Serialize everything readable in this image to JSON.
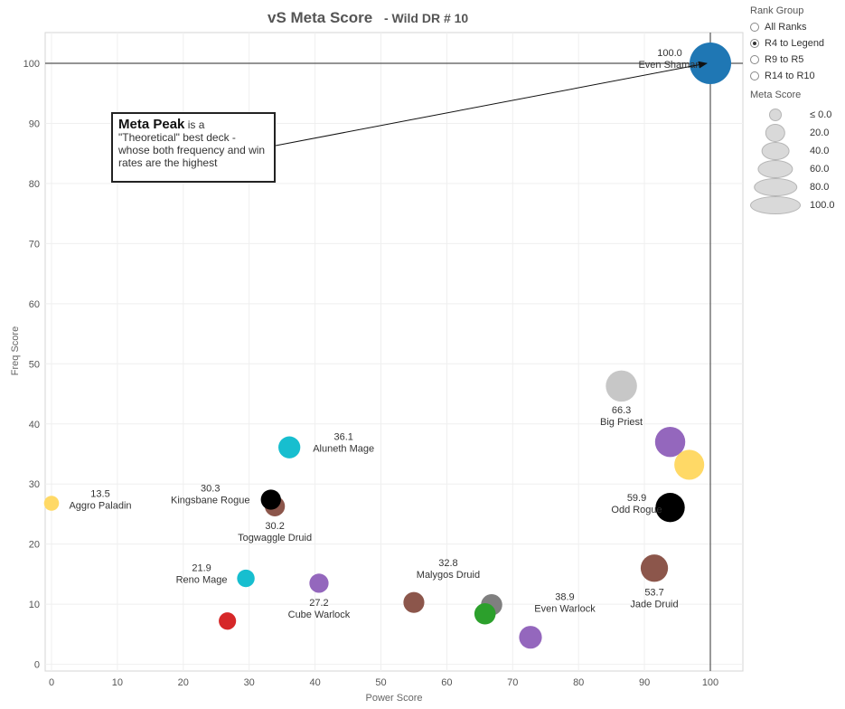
{
  "chart_data": {
    "type": "scatter",
    "title": "vS Meta Score",
    "subtitle": "- Wild DR # 10",
    "xlabel": "Power Score",
    "ylabel": "Freq Score",
    "xlim": [
      0,
      105
    ],
    "ylim": [
      0,
      105
    ],
    "xticks": [
      "0",
      "10",
      "20",
      "30",
      "40",
      "50",
      "60",
      "70",
      "80",
      "90",
      "100"
    ],
    "yticks": [
      "0",
      "10",
      "20",
      "30",
      "40",
      "50",
      "60",
      "70",
      "80",
      "90",
      "100"
    ],
    "grid": true,
    "reference_lines": {
      "x": 100,
      "y": 100
    },
    "points": [
      {
        "x": 100.0,
        "y": 100.0,
        "size": 100,
        "color": "#1f77b4",
        "name": "Even Shaman",
        "value": "100.0"
      },
      {
        "x": 86.5,
        "y": 46.3,
        "size": 66.3,
        "color": "#c7c7c7",
        "name": "Big Priest",
        "value": "66.3"
      },
      {
        "x": 93.9,
        "y": 37.0,
        "size": 63,
        "color": "#9467bd",
        "name": "",
        "value": ""
      },
      {
        "x": 96.8,
        "y": 33.2,
        "size": 62,
        "color": "#ffd966",
        "name": "",
        "value": ""
      },
      {
        "x": 93.9,
        "y": 26.1,
        "size": 59.9,
        "color": "#000000",
        "name": "Odd Rogue",
        "value": "59.9"
      },
      {
        "x": 91.5,
        "y": 16.0,
        "size": 53.7,
        "color": "#8c564b",
        "name": "Jade Druid",
        "value": "53.7"
      },
      {
        "x": 72.7,
        "y": 4.5,
        "size": 38.9,
        "color": "#9467bd",
        "name": "Even Warlock",
        "value": "38.9"
      },
      {
        "x": 66.8,
        "y": 9.9,
        "size": 34,
        "color": "#7f7f7f",
        "name": "",
        "value": ""
      },
      {
        "x": 65.8,
        "y": 8.4,
        "size": 34,
        "color": "#2ca02c",
        "name": "",
        "value": ""
      },
      {
        "x": 55.0,
        "y": 10.3,
        "size": 32.8,
        "color": "#8c564b",
        "name": "Malygos Druid",
        "value": "32.8"
      },
      {
        "x": 40.6,
        "y": 13.5,
        "size": 27.2,
        "color": "#9467bd",
        "name": "Cube Warlock",
        "value": "27.2"
      },
      {
        "x": 36.1,
        "y": 36.1,
        "size": 36.1,
        "color": "#17becf",
        "name": "Aluneth Mage",
        "value": "36.1"
      },
      {
        "x": 33.9,
        "y": 26.3,
        "size": 30.2,
        "color": "#8c564b",
        "name": "Togwaggle Druid",
        "value": "30.2"
      },
      {
        "x": 33.3,
        "y": 27.4,
        "size": 30.3,
        "color": "#000000",
        "name": "Kingsbane Rogue",
        "value": "30.3"
      },
      {
        "x": 29.5,
        "y": 14.3,
        "size": 21.9,
        "color": "#17becf",
        "name": "Reno Mage",
        "value": "21.9"
      },
      {
        "x": 26.7,
        "y": 7.2,
        "size": 21,
        "color": "#d62728",
        "name": "",
        "value": ""
      },
      {
        "x": 0.0,
        "y": 26.8,
        "size": 13.5,
        "color": "#ffd966",
        "name": "Aggro Paladin",
        "value": "13.5"
      }
    ]
  },
  "annotation": {
    "bold": "Meta Peak",
    "text": " is a \"Theoretical\" best deck - whose both frequency and win rates are the highest"
  },
  "legend": {
    "rank_group_title": "Rank Group",
    "rank_options": [
      {
        "label": "All Ranks",
        "checked": false
      },
      {
        "label": "R4 to Legend",
        "checked": true
      },
      {
        "label": "R9 to R5",
        "checked": false
      },
      {
        "label": "R14 to R10",
        "checked": false
      }
    ],
    "meta_score_title": "Meta Score",
    "size_entries": [
      {
        "label": "≤ 0.0",
        "value": 0
      },
      {
        "label": "20.0",
        "value": 20
      },
      {
        "label": "40.0",
        "value": 40
      },
      {
        "label": "60.0",
        "value": 60
      },
      {
        "label": "80.0",
        "value": 80
      },
      {
        "label": "100.0",
        "value": 100
      }
    ]
  }
}
